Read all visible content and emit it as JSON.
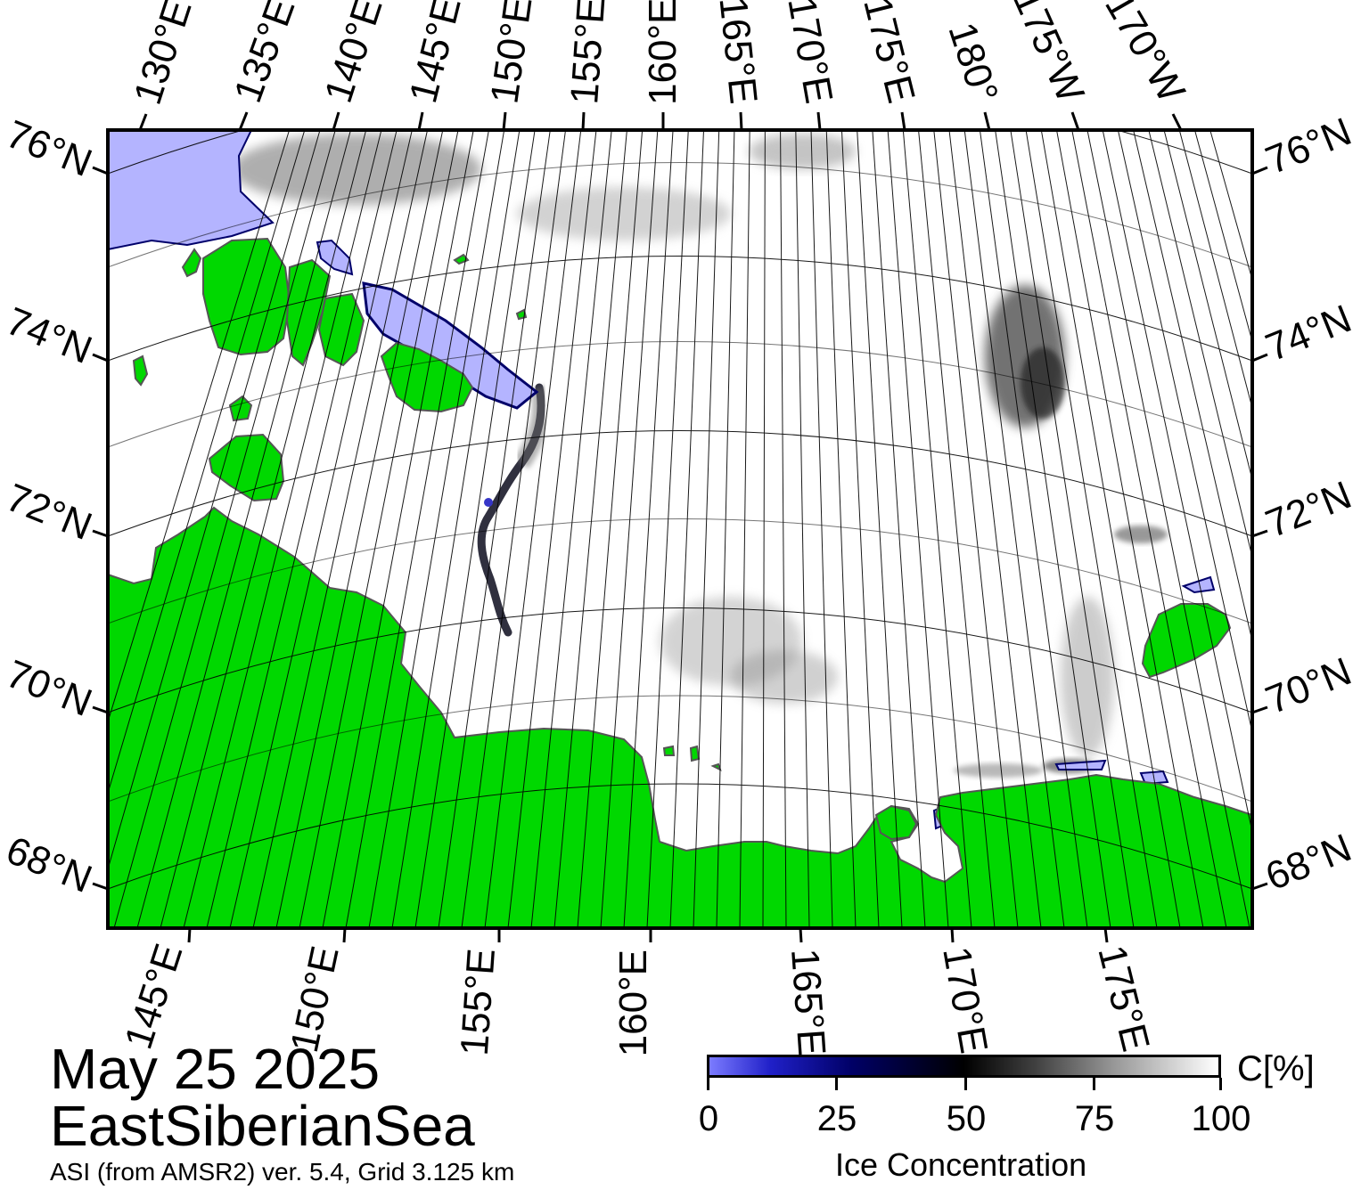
{
  "header": {
    "date": "May 25 2025",
    "region": "EastSiberianSea",
    "source": "ASI (from AMSR2) ver. 5.4,  Grid 3.125 km"
  },
  "map": {
    "top_labels": [
      "130°E",
      "135°E",
      "140°E",
      "145°E",
      "150°E",
      "155°E",
      "160°E",
      "165°E",
      "170°E",
      "175°E",
      "180°",
      "175°W",
      "170°W"
    ],
    "bottom_labels": [
      "145°E",
      "150°E",
      "155°E",
      "160°E",
      "165°E",
      "170°E",
      "175°E"
    ],
    "left_labels": [
      "76°N",
      "74°N",
      "72°N",
      "70°N",
      "68°N"
    ],
    "right_labels": [
      "76°N",
      "74°N",
      "72°N",
      "70°N",
      "68°N"
    ],
    "colors": {
      "land": "#00d800",
      "ocean": "#ffffff",
      "low_ice": "#b4b4ff",
      "coast_edge": "#8a8a8a"
    }
  },
  "colorbar": {
    "unit": "C[%]",
    "ticks": [
      "0",
      "25",
      "50",
      "75",
      "100"
    ],
    "title": "Ice Concentration"
  }
}
